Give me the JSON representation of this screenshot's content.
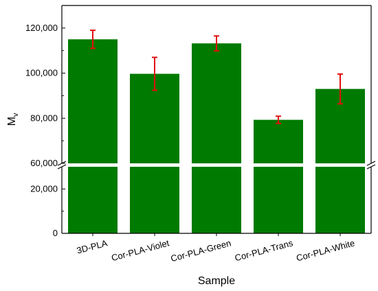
{
  "chart_data": {
    "type": "bar",
    "xlabel": "Sample",
    "ylabel": "M",
    "ylabel_subscript": "v",
    "y_axis_break": {
      "lower_range": [
        0,
        30000
      ],
      "upper_range": [
        60000,
        130000
      ]
    },
    "categories": [
      "3D-PLA",
      "Cor-PLA-Violet",
      "Cor-PLA-Green",
      "Cor-PLA-Trans",
      "Cor-PLA-White"
    ],
    "values": [
      115000,
      99700,
      113200,
      79300,
      93000
    ],
    "errors": [
      4000,
      7300,
      3300,
      1600,
      6600
    ],
    "bar_color": "#007a00",
    "error_bar_color": "#e01010",
    "y_ticks_lower": [
      {
        "value": 0,
        "label": "0"
      },
      {
        "value": 20000,
        "label": "20,000"
      }
    ],
    "y_ticks_upper": [
      {
        "value": 60000,
        "label": "60,000"
      },
      {
        "value": 80000,
        "label": "80,000"
      },
      {
        "value": 100000,
        "label": "100,000"
      },
      {
        "value": 120000,
        "label": "120,000"
      }
    ],
    "grid": false,
    "legend": "none"
  }
}
